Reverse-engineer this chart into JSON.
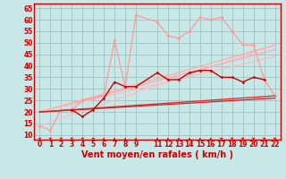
{
  "bg_color": "#c8e8e8",
  "grid_color": "#99bbbb",
  "xlabel": "Vent moyen/en rafales ( km/h )",
  "xlabel_color": "#cc0000",
  "xlabel_fontsize": 7,
  "tick_color": "#cc0000",
  "tick_fontsize": 5.5,
  "ylim": [
    8,
    67
  ],
  "xlim": [
    -0.5,
    22.5
  ],
  "yticks": [
    10,
    15,
    20,
    25,
    30,
    35,
    40,
    45,
    50,
    55,
    60,
    65
  ],
  "xticks": [
    0,
    1,
    2,
    3,
    4,
    5,
    6,
    7,
    8,
    9,
    11,
    12,
    13,
    14,
    15,
    16,
    17,
    18,
    19,
    20,
    21,
    22
  ],
  "series": [
    {
      "x": [
        0,
        1,
        2,
        3,
        4,
        5,
        6,
        7,
        8,
        9,
        11,
        12,
        13,
        14,
        15,
        16,
        17,
        18,
        19,
        20,
        21,
        22
      ],
      "y": [
        14,
        12,
        21,
        21,
        25,
        26,
        27,
        51,
        31,
        62,
        59,
        53,
        52,
        55,
        61,
        60,
        61,
        55,
        49,
        49,
        34,
        27
      ],
      "color": "#ff9999",
      "lw": 0.9,
      "marker": "D",
      "ms": 2.0,
      "zorder": 3
    },
    {
      "x": [
        3,
        4,
        5,
        6,
        7,
        8,
        9,
        11,
        12,
        13,
        14,
        15,
        16,
        17,
        18,
        19,
        20,
        21
      ],
      "y": [
        21,
        18,
        21,
        26,
        33,
        31,
        31,
        37,
        34,
        34,
        37,
        38,
        38,
        35,
        35,
        33,
        35,
        34
      ],
      "color": "#cc0000",
      "lw": 1.0,
      "marker": "o",
      "ms": 2.0,
      "zorder": 5
    },
    {
      "x": [
        0,
        22
      ],
      "y": [
        14,
        49
      ],
      "color": "#ffbbcc",
      "lw": 0.9,
      "marker": null,
      "ms": 0,
      "zorder": 2
    },
    {
      "x": [
        0,
        22
      ],
      "y": [
        20,
        49
      ],
      "color": "#ffaaaa",
      "lw": 0.9,
      "marker": null,
      "ms": 0,
      "zorder": 2
    },
    {
      "x": [
        0,
        22
      ],
      "y": [
        20,
        47
      ],
      "color": "#ffaaaa",
      "lw": 0.9,
      "marker": null,
      "ms": 0,
      "zorder": 2
    },
    {
      "x": [
        0,
        22
      ],
      "y": [
        20,
        44
      ],
      "color": "#ffbbbb",
      "lw": 0.9,
      "marker": null,
      "ms": 0,
      "zorder": 2
    },
    {
      "x": [
        0,
        22
      ],
      "y": [
        20,
        27
      ],
      "color": "#dd3333",
      "lw": 1.0,
      "marker": null,
      "ms": 0,
      "zorder": 4
    },
    {
      "x": [
        0,
        22
      ],
      "y": [
        20,
        26
      ],
      "color": "#cc2222",
      "lw": 0.9,
      "marker": null,
      "ms": 0,
      "zorder": 4
    }
  ],
  "wind_arrows": [
    0,
    1,
    2,
    3,
    4,
    5,
    6,
    7,
    8,
    9,
    11,
    12,
    13,
    14,
    15,
    16,
    17,
    18,
    19,
    20,
    21,
    22
  ],
  "wind_color": "#cc0000",
  "spine_color": "#cc0000"
}
